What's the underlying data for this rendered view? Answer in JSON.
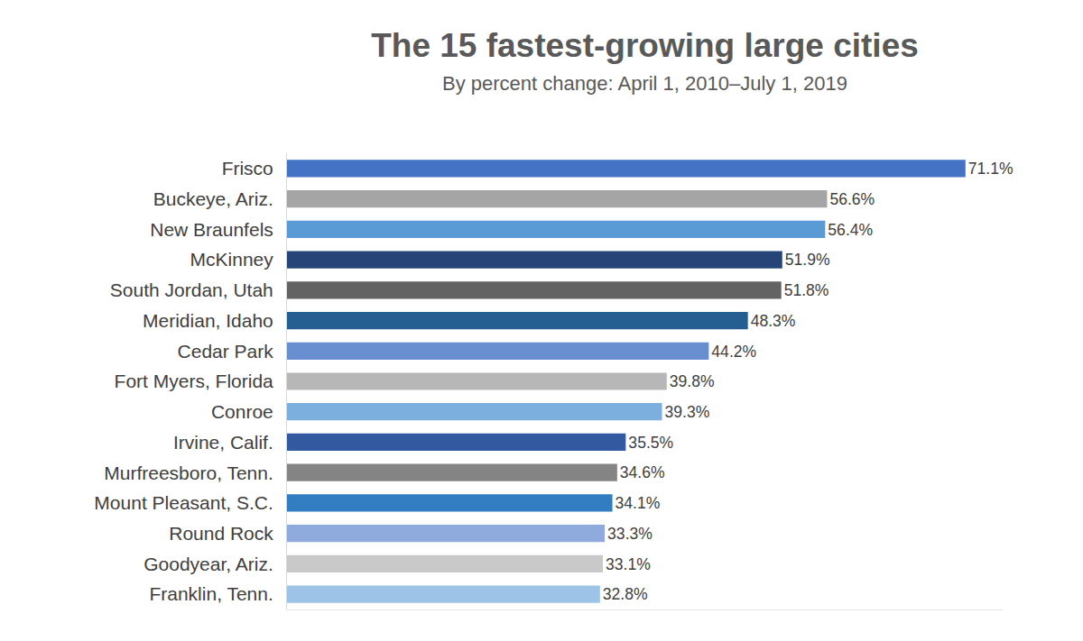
{
  "chart_data": {
    "type": "bar",
    "title": "The 15 fastest-growing large cities",
    "subtitle": "By percent change: April 1, 2010–July 1, 2019",
    "orientation": "horizontal",
    "categories": [
      "Frisco",
      "Buckeye, Ariz.",
      "New Braunfels",
      "McKinney",
      "South Jordan, Utah",
      "Meridian, Idaho",
      "Cedar Park",
      "Fort Myers, Florida",
      "Conroe",
      "Irvine, Calif.",
      "Murfreesboro, Tenn.",
      "Mount Pleasant, S.C.",
      "Round Rock",
      "Goodyear, Ariz.",
      "Franklin, Tenn."
    ],
    "values": [
      71.1,
      56.6,
      56.4,
      51.9,
      51.8,
      48.3,
      44.2,
      39.8,
      39.3,
      35.5,
      34.6,
      34.1,
      33.3,
      33.1,
      32.8
    ],
    "value_labels": [
      "71.1%",
      "56.6%",
      "56.4%",
      "51.9%",
      "51.8%",
      "48.3%",
      "44.2%",
      "39.8%",
      "39.3%",
      "35.5%",
      "34.6%",
      "34.1%",
      "33.3%",
      "33.1%",
      "32.8%"
    ],
    "colors": [
      "#4472c4",
      "#a5a5a5",
      "#5b9bd5",
      "#264478",
      "#636363",
      "#255e91",
      "#698ed0",
      "#b7b7b7",
      "#7cafdd",
      "#335aa1",
      "#848484",
      "#327dc2",
      "#8faadc",
      "#c9c9c9",
      "#9dc3e6"
    ],
    "data_labels": true,
    "tick_labels": "y",
    "grid": false,
    "xlim": [
      0,
      75
    ],
    "xticks": []
  }
}
